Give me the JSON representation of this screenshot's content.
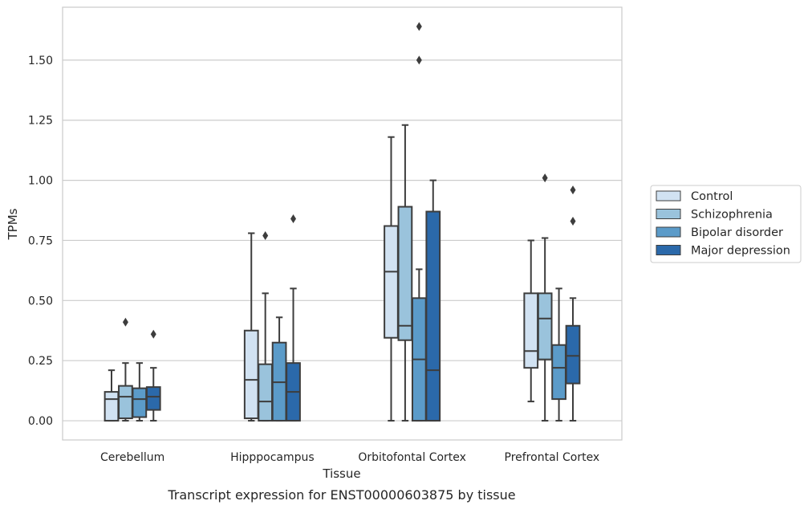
{
  "caption": "Transcript expression for ENST00000603875 by tissue",
  "chart_data": {
    "type": "box",
    "title": "",
    "xlabel": "Tissue",
    "ylabel": "TPMs",
    "ylim": [
      -0.08,
      1.72
    ],
    "yticks": [
      "0.00",
      "0.25",
      "0.50",
      "0.75",
      "1.00",
      "1.25",
      "1.50"
    ],
    "grid": true,
    "legend_position": "right",
    "categories": [
      "Cerebellum",
      "Hipppocampus",
      "Orbitofontal Cortex",
      "Prefrontal Cortex"
    ],
    "series": [
      {
        "name": "Control",
        "color": "#d1e2f2",
        "boxes": [
          {
            "min": 0.0,
            "q1": 0.0,
            "median": 0.09,
            "q3": 0.12,
            "max": 0.21,
            "outliers": []
          },
          {
            "min": 0.0,
            "q1": 0.01,
            "median": 0.17,
            "q3": 0.375,
            "max": 0.78,
            "outliers": []
          },
          {
            "min": 0.0,
            "q1": 0.345,
            "median": 0.62,
            "q3": 0.81,
            "max": 1.18,
            "outliers": []
          },
          {
            "min": 0.08,
            "q1": 0.22,
            "median": 0.29,
            "q3": 0.53,
            "max": 0.75,
            "outliers": []
          }
        ]
      },
      {
        "name": "Schizophrenia",
        "color": "#9ac3dc",
        "boxes": [
          {
            "min": 0.0,
            "q1": 0.01,
            "median": 0.1,
            "q3": 0.145,
            "max": 0.24,
            "outliers": [
              0.41
            ]
          },
          {
            "min": 0.0,
            "q1": 0.0,
            "median": 0.08,
            "q3": 0.235,
            "max": 0.53,
            "outliers": [
              0.77
            ]
          },
          {
            "min": 0.0,
            "q1": 0.335,
            "median": 0.395,
            "q3": 0.89,
            "max": 1.23,
            "outliers": []
          },
          {
            "min": 0.0,
            "q1": 0.255,
            "median": 0.425,
            "q3": 0.53,
            "max": 0.76,
            "outliers": [
              1.01
            ]
          }
        ]
      },
      {
        "name": "Bipolar disorder",
        "color": "#5b9bc9",
        "boxes": [
          {
            "min": 0.0,
            "q1": 0.015,
            "median": 0.09,
            "q3": 0.135,
            "max": 0.24,
            "outliers": []
          },
          {
            "min": 0.0,
            "q1": 0.0,
            "median": 0.16,
            "q3": 0.325,
            "max": 0.43,
            "outliers": []
          },
          {
            "min": 0.0,
            "q1": 0.0,
            "median": 0.255,
            "q3": 0.51,
            "max": 0.63,
            "outliers": [
              1.5,
              1.64
            ]
          },
          {
            "min": 0.0,
            "q1": 0.09,
            "median": 0.22,
            "q3": 0.315,
            "max": 0.55,
            "outliers": []
          }
        ]
      },
      {
        "name": "Major depression",
        "color": "#2b69aa",
        "boxes": [
          {
            "min": 0.0,
            "q1": 0.045,
            "median": 0.1,
            "q3": 0.14,
            "max": 0.22,
            "outliers": [
              0.36
            ]
          },
          {
            "min": 0.0,
            "q1": 0.0,
            "median": 0.12,
            "q3": 0.24,
            "max": 0.55,
            "outliers": [
              0.84
            ]
          },
          {
            "min": 0.0,
            "q1": 0.0,
            "median": 0.21,
            "q3": 0.87,
            "max": 1.0,
            "outliers": []
          },
          {
            "min": 0.0,
            "q1": 0.155,
            "median": 0.27,
            "q3": 0.395,
            "max": 0.51,
            "outliers": [
              0.83,
              0.96
            ]
          }
        ]
      }
    ]
  }
}
